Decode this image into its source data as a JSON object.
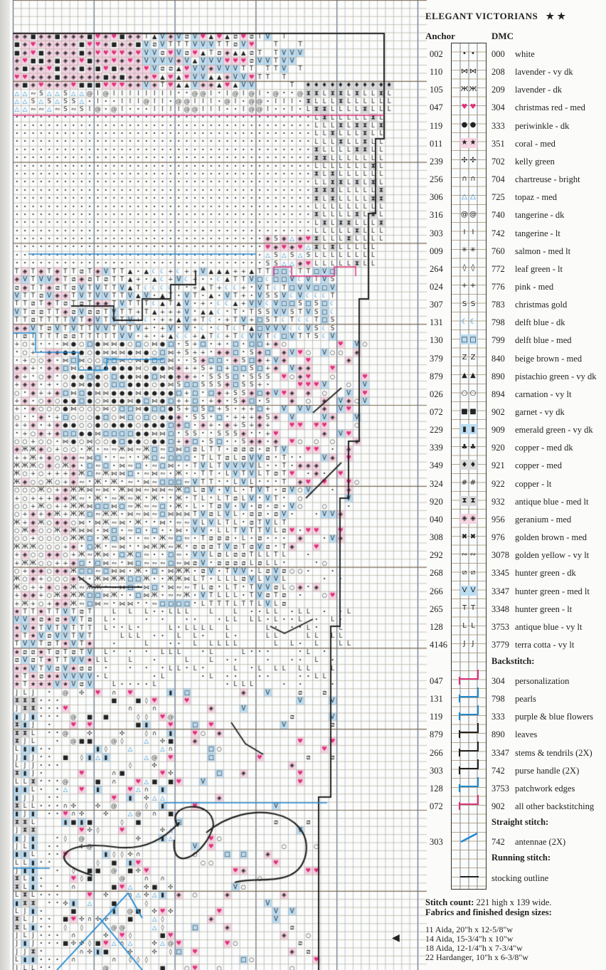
{
  "title": "ELEGANT VICTORIANS",
  "difficulty": "★ ★",
  "headers": {
    "anchor": "Anchor",
    "dmc": "DMC"
  },
  "colors": {
    "pink": "#e0307a",
    "blue": "#1e88d0",
    "black": "#222222",
    "pink_bg": "#f6d3e0",
    "blue_bg": "#bcdcf0",
    "grey_bg": "#d9d9d9"
  },
  "legend": [
    {
      "anchor": "002",
      "symbol": "•",
      "dmc": "000",
      "name": "white"
    },
    {
      "anchor": "110",
      "symbol": "⋈",
      "dmc": "208",
      "name": "lavender - vy dk"
    },
    {
      "anchor": "105",
      "symbol": "Ж",
      "dmc": "209",
      "name": "lavender - dk"
    },
    {
      "anchor": "047",
      "symbol": "♥",
      "dmc": "304",
      "name": "christmas red - med",
      "color": "#e0307a"
    },
    {
      "anchor": "119",
      "symbol": "●",
      "dmc": "333",
      "name": "periwinkle - dk"
    },
    {
      "anchor": "011",
      "symbol": "★",
      "dmc": "351",
      "name": "coral - med",
      "bg": "#f6d3e0"
    },
    {
      "anchor": "239",
      "symbol": "✣",
      "dmc": "702",
      "name": "kelly green"
    },
    {
      "anchor": "256",
      "symbol": "∩",
      "dmc": "704",
      "name": "chartreuse - bright"
    },
    {
      "anchor": "306",
      "symbol": "△",
      "dmc": "725",
      "name": "topaz - med",
      "color": "#1e88d0"
    },
    {
      "anchor": "316",
      "symbol": "@",
      "dmc": "740",
      "name": "tangerine - dk"
    },
    {
      "anchor": "303",
      "symbol": "I",
      "dmc": "742",
      "name": "tangerine - lt"
    },
    {
      "anchor": "009",
      "symbol": "✳",
      "dmc": "760",
      "name": "salmon - med lt"
    },
    {
      "anchor": "264",
      "symbol": "◊",
      "dmc": "772",
      "name": "leaf green - lt"
    },
    {
      "anchor": "024",
      "symbol": "+",
      "dmc": "776",
      "name": "pink - med"
    },
    {
      "anchor": "307",
      "symbol": "S",
      "dmc": "783",
      "name": "christmas gold"
    },
    {
      "anchor": "131",
      "symbol": "☾",
      "dmc": "798",
      "name": "delft blue - dk",
      "color": "#1e88d0"
    },
    {
      "anchor": "130",
      "symbol": "□",
      "dmc": "799",
      "name": "delft blue - med",
      "bg": "#bcdcf0"
    },
    {
      "anchor": "379",
      "symbol": "Z",
      "dmc": "840",
      "name": "beige brown - med"
    },
    {
      "anchor": "879",
      "symbol": "▲",
      "dmc": "890",
      "name": "pistachio green - vy dk"
    },
    {
      "anchor": "026",
      "symbol": "○",
      "dmc": "894",
      "name": "carnation - vy lt"
    },
    {
      "anchor": "072",
      "symbol": "■",
      "dmc": "902",
      "name": "garnet - vy dk"
    },
    {
      "anchor": "229",
      "symbol": "▮",
      "dmc": "909",
      "name": "emerald green - vy dk",
      "bg": "#bcdcf0"
    },
    {
      "anchor": "339",
      "symbol": "♣",
      "dmc": "920",
      "name": "copper - med dk"
    },
    {
      "anchor": "349",
      "symbol": "♦",
      "dmc": "921",
      "name": "copper - med",
      "bg": "#d9d9d9"
    },
    {
      "anchor": "324",
      "symbol": "#",
      "dmc": "922",
      "name": "copper - lt"
    },
    {
      "anchor": "920",
      "symbol": "⧗",
      "dmc": "932",
      "name": "antique blue - med lt",
      "bg": "#d9d9d9"
    },
    {
      "anchor": "040",
      "symbol": "◈",
      "dmc": "956",
      "name": "geranium - med",
      "bg": "#f6d3e0"
    },
    {
      "anchor": "308",
      "symbol": "✖",
      "dmc": "976",
      "name": "golden brown - med"
    },
    {
      "anchor": "292",
      "symbol": "∾",
      "dmc": "3078",
      "name": "golden yellow - vy lt"
    },
    {
      "anchor": "268",
      "symbol": "⧄",
      "dmc": "3345",
      "name": "hunter green - dk"
    },
    {
      "anchor": "266",
      "symbol": "V",
      "dmc": "3347",
      "name": "hunter green - med lt",
      "bg": "#bcdcf0"
    },
    {
      "anchor": "265",
      "symbol": "T",
      "dmc": "3348",
      "name": "hunter green - lt"
    },
    {
      "anchor": "128",
      "symbol": "L",
      "dmc": "3753",
      "name": "antique blue - vy lt"
    },
    {
      "anchor": "4146",
      "symbol": "J",
      "dmc": "3779",
      "name": "terra cotta - vy lt"
    }
  ],
  "backstitch": {
    "title": "Backstitch:",
    "items": [
      {
        "anchor": "047",
        "dmc": "304",
        "name": "personalization",
        "color": "#e0307a"
      },
      {
        "anchor": "131",
        "dmc": "798",
        "name": "pearls",
        "color": "#1e88d0"
      },
      {
        "anchor": "119",
        "dmc": "333",
        "name": "purple & blue flowers",
        "color": "#1e88d0"
      },
      {
        "anchor": "879",
        "dmc": "890",
        "name": "leaves",
        "color": "#222222"
      },
      {
        "anchor": "266",
        "dmc": "3347",
        "name": "stems & tendrils (2X)",
        "color": "#222222"
      },
      {
        "anchor": "303",
        "dmc": "742",
        "name": "purse handle (2X)",
        "color": "#222222"
      },
      {
        "anchor": "128",
        "dmc": "3753",
        "name": "patchwork edges",
        "color": "#1e88d0"
      },
      {
        "anchor": "072",
        "dmc": "902",
        "name": "all other backstitching",
        "color": "#e0307a"
      }
    ]
  },
  "straight": {
    "title": "Straight stitch:",
    "anchor": "303",
    "dmc": "742",
    "name": "antennae (2X)"
  },
  "running": {
    "title": "Running stitch:",
    "name": "stocking outline"
  },
  "stitch_count": {
    "label": "Stitch count:",
    "value": "221 high x 139 wide."
  },
  "fabrics": {
    "title": "Fabrics and finished design sizes:",
    "items": [
      "11 Aida, 20\"h x 12-5/8\"w",
      "14 Aida, 15-3/4\"h x 10\"w",
      "18 Aida, 12-1/4\"h x 7-3/4\"w",
      "22 Hardanger, 10\"h x 6-3/8\"w"
    ]
  }
}
